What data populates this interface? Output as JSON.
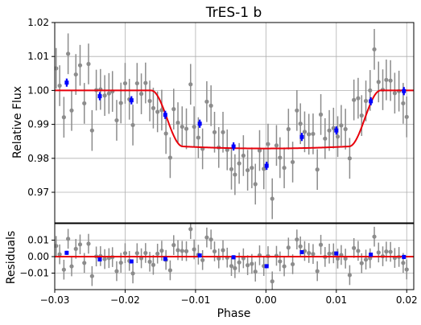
{
  "chart_data": {
    "type": "scatter",
    "title": "TrES-1 b",
    "xlabel": "Phase",
    "xlim": [
      -0.03,
      0.021
    ],
    "xticks": [
      -0.03,
      -0.02,
      -0.01,
      0.0,
      0.01,
      0.02
    ],
    "xtick_labels": [
      "−0.03",
      "−0.02",
      "−0.01",
      "0.00",
      "0.01",
      "0.02"
    ],
    "grid": true,
    "colors": {
      "raw": "#8c8c8c",
      "binned": "#0000ff",
      "model": "#e8000b",
      "grid": "#b0b0b0"
    },
    "panels": [
      {
        "id": "flux",
        "ylabel": "Relative Flux",
        "ylim": [
          0.961,
          1.02
        ],
        "yticks": [
          0.97,
          0.98,
          0.99,
          1.0,
          1.01,
          1.02
        ],
        "ytick_labels": [
          "0.97",
          "0.98",
          "0.99",
          "1.00",
          "1.01",
          "1.02"
        ],
        "raw_err": 0.006,
        "binned_err": 0.0012,
        "model": {
          "baseline": 1.0,
          "depth": 0.0165,
          "t1": -0.0163,
          "t2": -0.0118,
          "t3": 0.0118,
          "t4": 0.0163
        },
        "raw_points": [
          [
            -0.0298,
            1.0065
          ],
          [
            -0.0293,
            1.0014
          ],
          [
            -0.0287,
            0.9921
          ],
          [
            -0.0281,
            1.0108
          ],
          [
            -0.0276,
            0.9941
          ],
          [
            -0.027,
            1.0047
          ],
          [
            -0.0264,
            1.0074
          ],
          [
            -0.0258,
            0.9962
          ],
          [
            -0.0252,
            1.0078
          ],
          [
            -0.0247,
            0.9882
          ],
          [
            -0.0241,
            1.0001
          ],
          [
            -0.0235,
            1.0003
          ],
          [
            -0.0229,
            0.9985
          ],
          [
            -0.0223,
            0.9991
          ],
          [
            -0.0218,
            0.9997
          ],
          [
            -0.0212,
            0.9912
          ],
          [
            -0.0206,
            0.9963
          ],
          [
            -0.02,
            1.0021
          ],
          [
            -0.0194,
            0.9974
          ],
          [
            -0.0189,
            0.9898
          ],
          [
            -0.0183,
            1.0021
          ],
          [
            -0.0177,
            0.999
          ],
          [
            -0.0171,
            1.0022
          ],
          [
            -0.0165,
            0.9969
          ],
          [
            -0.016,
            0.9948
          ],
          [
            -0.0154,
            0.9937
          ],
          [
            -0.0148,
            0.9942
          ],
          [
            -0.0142,
            0.9873
          ],
          [
            -0.0136,
            0.9802
          ],
          [
            -0.0131,
            0.9945
          ],
          [
            -0.0125,
            0.9905
          ],
          [
            -0.0119,
            0.9893
          ],
          [
            -0.0113,
            0.9887
          ],
          [
            -0.0107,
            1.0018
          ],
          [
            -0.0102,
            0.9893
          ],
          [
            -0.0096,
            0.9861
          ],
          [
            -0.009,
            0.9828
          ],
          [
            -0.0084,
            0.9967
          ],
          [
            -0.0078,
            0.9955
          ],
          [
            -0.0073,
            0.9877
          ],
          [
            -0.0067,
            0.9832
          ],
          [
            -0.0061,
            0.9877
          ],
          [
            -0.0055,
            0.9825
          ],
          [
            -0.0049,
            0.9768
          ],
          [
            -0.0044,
            0.9752
          ],
          [
            -0.0038,
            0.9785
          ],
          [
            -0.0032,
            0.9808
          ],
          [
            -0.0026,
            0.9765
          ],
          [
            -0.002,
            0.9772
          ],
          [
            -0.0015,
            0.9724
          ],
          [
            -0.0009,
            0.9823
          ],
          [
            -0.0003,
            0.9769
          ],
          [
            0.0003,
            0.9842
          ],
          [
            0.0009,
            0.9681
          ],
          [
            0.0015,
            0.9838
          ],
          [
            0.002,
            0.9802
          ],
          [
            0.0026,
            0.9772
          ],
          [
            0.0032,
            0.9886
          ],
          [
            0.0038,
            0.9789
          ],
          [
            0.0044,
            0.9941
          ],
          [
            0.0049,
            0.9902
          ],
          [
            0.0055,
            0.9878
          ],
          [
            0.0061,
            0.9871
          ],
          [
            0.0067,
            0.9872
          ],
          [
            0.0073,
            0.9767
          ],
          [
            0.0078,
            0.9929
          ],
          [
            0.0084,
            0.9858
          ],
          [
            0.009,
            0.9882
          ],
          [
            0.0096,
            0.9889
          ],
          [
            0.0102,
            0.9864
          ],
          [
            0.0107,
            0.9897
          ],
          [
            0.0113,
            0.9886
          ],
          [
            0.0119,
            0.98
          ],
          [
            0.0125,
            0.9972
          ],
          [
            0.0131,
            0.9977
          ],
          [
            0.0136,
            0.9926
          ],
          [
            0.0142,
            0.9969
          ],
          [
            0.0148,
            1.0
          ],
          [
            0.0154,
            1.0121
          ],
          [
            0.016,
            1.0025
          ],
          [
            0.0166,
            1.0002
          ],
          [
            0.0171,
            1.0031
          ],
          [
            0.0177,
            1.0029
          ],
          [
            0.0183,
            0.9992
          ],
          [
            0.0189,
            0.9998
          ],
          [
            0.0195,
            0.9962
          ],
          [
            0.02,
            0.9922
          ]
        ],
        "binned_points": [
          [
            -0.0283,
            1.0023
          ],
          [
            -0.0236,
            0.9983
          ],
          [
            -0.0191,
            0.9971
          ],
          [
            -0.0143,
            0.9928
          ],
          [
            -0.0094,
            0.9902
          ],
          [
            -0.0046,
            0.9835
          ],
          [
            0.0001,
            0.9778
          ],
          [
            0.0051,
            0.9863
          ],
          [
            0.01,
            0.9882
          ],
          [
            0.0149,
            0.9968
          ],
          [
            0.0196,
            0.9998
          ]
        ]
      },
      {
        "id": "residuals",
        "ylabel": "Residuals",
        "ylim": [
          -0.02,
          0.02
        ],
        "yticks": [
          -0.01,
          0.0,
          0.01
        ],
        "ytick_labels": [
          "−0.01",
          "0.00",
          "0.01"
        ],
        "raw_err": 0.006,
        "binned_err": 0.0012,
        "model": {
          "baseline": 0.0
        },
        "raw_points": [
          [
            -0.0298,
            0.0065
          ],
          [
            -0.0293,
            0.0014
          ],
          [
            -0.0287,
            -0.0079
          ],
          [
            -0.0281,
            0.0108
          ],
          [
            -0.0276,
            -0.0059
          ],
          [
            -0.027,
            0.0047
          ],
          [
            -0.0264,
            0.0074
          ],
          [
            -0.0258,
            -0.0038
          ],
          [
            -0.0252,
            0.0078
          ],
          [
            -0.0247,
            -0.0118
          ],
          [
            -0.0241,
            0.0001
          ],
          [
            -0.0235,
            0.0003
          ],
          [
            -0.0229,
            -0.0015
          ],
          [
            -0.0223,
            -0.0009
          ],
          [
            -0.0218,
            -0.0003
          ],
          [
            -0.0212,
            -0.0088
          ],
          [
            -0.0206,
            -0.0037
          ],
          [
            -0.02,
            0.0021
          ],
          [
            -0.0194,
            -0.0026
          ],
          [
            -0.0189,
            -0.0102
          ],
          [
            -0.0183,
            0.0021
          ],
          [
            -0.0177,
            -0.001
          ],
          [
            -0.0171,
            0.0022
          ],
          [
            -0.0165,
            -0.0031
          ],
          [
            -0.016,
            -0.005
          ],
          [
            -0.0154,
            0.0018
          ],
          [
            -0.0148,
            0.0036
          ],
          [
            -0.0142,
            -0.002
          ],
          [
            -0.0136,
            -0.0083
          ],
          [
            -0.0131,
            0.007
          ],
          [
            -0.0125,
            0.0039
          ],
          [
            -0.0119,
            0.0035
          ],
          [
            -0.0113,
            0.0033
          ],
          [
            -0.0107,
            0.0167
          ],
          [
            -0.0102,
            0.0044
          ],
          [
            -0.0096,
            0.0012
          ],
          [
            -0.009,
            -0.0021
          ],
          [
            -0.0084,
            0.0116
          ],
          [
            -0.0078,
            0.0104
          ],
          [
            -0.0073,
            0.0032
          ],
          [
            -0.0067,
            -0.0011
          ],
          [
            -0.0061,
            0.0039
          ],
          [
            -0.0055,
            -0.0006
          ],
          [
            -0.0049,
            -0.0057
          ],
          [
            -0.0044,
            -0.007
          ],
          [
            -0.0038,
            -0.0035
          ],
          [
            -0.0032,
            -0.001
          ],
          [
            -0.0026,
            -0.0052
          ],
          [
            -0.002,
            -0.0044
          ],
          [
            -0.0015,
            -0.0091
          ],
          [
            -0.0009,
            0.0008
          ],
          [
            -0.0003,
            -0.0057
          ],
          [
            0.0003,
            0.0003
          ],
          [
            0.0009,
            -0.015
          ],
          [
            0.0015,
            0.0005
          ],
          [
            0.002,
            -0.0029
          ],
          [
            0.0026,
            -0.0059
          ],
          [
            0.0032,
            0.0055
          ],
          [
            0.0038,
            -0.0046
          ],
          [
            0.0044,
            0.0104
          ],
          [
            0.0049,
            0.0062
          ],
          [
            0.0055,
            0.0034
          ],
          [
            0.0061,
            0.0022
          ],
          [
            0.0067,
            0.0016
          ],
          [
            0.0073,
            -0.0088
          ],
          [
            0.0078,
            0.0072
          ],
          [
            0.0084,
            -0.0002
          ],
          [
            0.009,
            0.0018
          ],
          [
            0.0096,
            0.002
          ],
          [
            0.0102,
            -0.0012
          ],
          [
            0.0107,
            0.001
          ],
          [
            0.0113,
            -0.0012
          ],
          [
            0.0119,
            -0.0112
          ],
          [
            0.0125,
            0.0052
          ],
          [
            0.0131,
            0.0035
          ],
          [
            0.0136,
            -0.004
          ],
          [
            0.0142,
            -0.0018
          ],
          [
            0.0148,
            -0.001
          ],
          [
            0.0154,
            0.0121
          ],
          [
            0.016,
            0.0025
          ],
          [
            0.0166,
            0.0002
          ],
          [
            0.0171,
            0.0031
          ],
          [
            0.0177,
            0.0029
          ],
          [
            0.0183,
            -0.0008
          ],
          [
            0.0189,
            -0.0002
          ],
          [
            0.0195,
            -0.0038
          ],
          [
            0.02,
            -0.0078
          ]
        ],
        "binned_points": [
          [
            -0.0283,
            0.0023
          ],
          [
            -0.0236,
            -0.0017
          ],
          [
            -0.0191,
            -0.0029
          ],
          [
            -0.0143,
            -0.0014
          ],
          [
            -0.0094,
            0.0007
          ],
          [
            -0.0046,
            -0.0004
          ],
          [
            0.0001,
            -0.0058
          ],
          [
            0.0051,
            0.0027
          ],
          [
            0.01,
            0.0019
          ],
          [
            0.0149,
            0.0012
          ],
          [
            0.0196,
            -0.0002
          ]
        ]
      }
    ]
  }
}
